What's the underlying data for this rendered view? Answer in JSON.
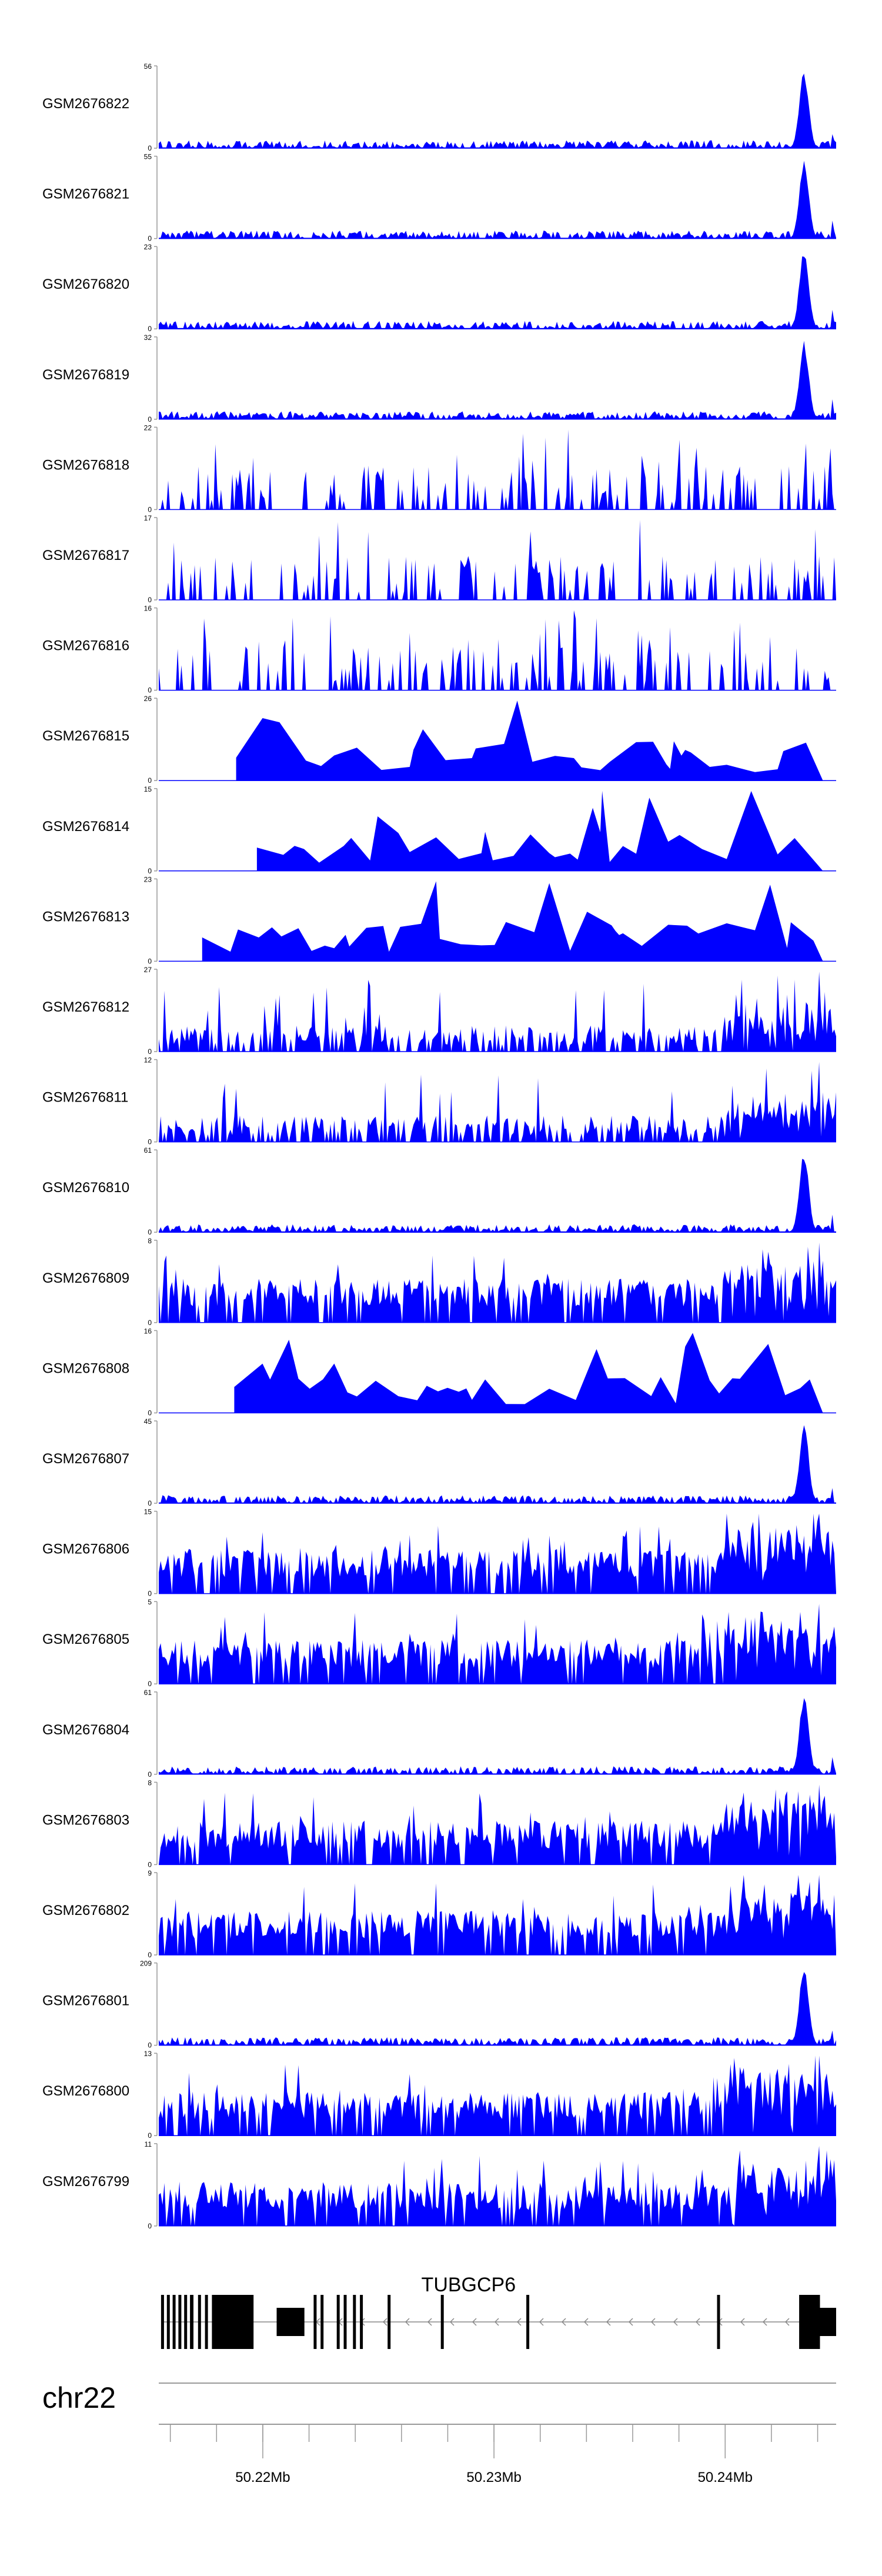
{
  "chart_data": {
    "type": "area",
    "title": "",
    "series": [
      {
        "name": "GSM2676822",
        "max": 56,
        "seed": 11,
        "profile": "lowpeak"
      },
      {
        "name": "GSM2676821",
        "max": 55,
        "seed": 12,
        "profile": "lowpeak"
      },
      {
        "name": "GSM2676820",
        "max": 23,
        "seed": 13,
        "profile": "lowpeak"
      },
      {
        "name": "GSM2676819",
        "max": 32,
        "seed": 14,
        "profile": "lowpeak"
      },
      {
        "name": "GSM2676818",
        "max": 22,
        "seed": 15,
        "profile": "sparse"
      },
      {
        "name": "GSM2676817",
        "max": 17,
        "seed": 16,
        "profile": "sparse"
      },
      {
        "name": "GSM2676816",
        "max": 16,
        "seed": 17,
        "profile": "sparse"
      },
      {
        "name": "GSM2676815",
        "max": 26,
        "seed": 18,
        "profile": "verysparse"
      },
      {
        "name": "GSM2676814",
        "max": 15,
        "seed": 19,
        "profile": "verysparse"
      },
      {
        "name": "GSM2676813",
        "max": 23,
        "seed": 20,
        "profile": "verysparse"
      },
      {
        "name": "GSM2676812",
        "max": 27,
        "seed": 21,
        "profile": "medium"
      },
      {
        "name": "GSM2676811",
        "max": 12,
        "seed": 22,
        "profile": "medium"
      },
      {
        "name": "GSM2676810",
        "max": 61,
        "seed": 23,
        "profile": "lowpeak"
      },
      {
        "name": "GSM2676809",
        "max": 8,
        "seed": 24,
        "profile": "dense"
      },
      {
        "name": "GSM2676808",
        "max": 16,
        "seed": 25,
        "profile": "verysparse"
      },
      {
        "name": "GSM2676807",
        "max": 45,
        "seed": 26,
        "profile": "lowpeak"
      },
      {
        "name": "GSM2676806",
        "max": 15,
        "seed": 27,
        "profile": "dense"
      },
      {
        "name": "GSM2676805",
        "max": 5,
        "seed": 28,
        "profile": "dense"
      },
      {
        "name": "GSM2676804",
        "max": 61,
        "seed": 29,
        "profile": "lowpeak"
      },
      {
        "name": "GSM2676803",
        "max": 8,
        "seed": 30,
        "profile": "dense"
      },
      {
        "name": "GSM2676802",
        "max": 9,
        "seed": 31,
        "profile": "dense"
      },
      {
        "name": "GSM2676801",
        "max": 209,
        "seed": 32,
        "profile": "lowpeak"
      },
      {
        "name": "GSM2676800",
        "max": 13,
        "seed": 33,
        "profile": "dense"
      },
      {
        "name": "GSM2676799",
        "max": 11,
        "seed": 34,
        "profile": "dense"
      }
    ],
    "ymin_label": "0",
    "x_range_mb": [
      50.2155,
      50.2448
    ],
    "ticks_mb": [
      50.22,
      50.23,
      50.24
    ],
    "tick_labels": [
      "50.22Mb",
      "50.23Mb",
      "50.24Mb"
    ],
    "chromosome": "chr22",
    "gene": {
      "name": "TUBGCP6",
      "strand": "-",
      "exons_mb": [
        [
          50.2156,
          50.2157
        ],
        [
          50.21585,
          50.21595
        ],
        [
          50.2161,
          50.2162
        ],
        [
          50.21635,
          50.21645
        ],
        [
          50.2166,
          50.2167
        ],
        [
          50.21685,
          50.217
        ],
        [
          50.2172,
          50.2173
        ],
        [
          50.2175,
          50.2176
        ],
        [
          50.2178,
          50.2196
        ],
        [
          50.2206,
          50.2218
        ],
        [
          50.2222,
          50.2223
        ],
        [
          50.2225,
          50.2226
        ],
        [
          50.2232,
          50.2233
        ],
        [
          50.2235,
          50.2236
        ],
        [
          50.2239,
          50.224
        ],
        [
          50.2242,
          50.2243
        ],
        [
          50.2254,
          50.22545
        ],
        [
          50.2277,
          50.22775
        ],
        [
          50.2314,
          50.23145
        ],
        [
          50.23965,
          50.2397
        ],
        [
          50.2432,
          50.2441
        ],
        [
          50.2441,
          50.2448
        ]
      ]
    }
  }
}
